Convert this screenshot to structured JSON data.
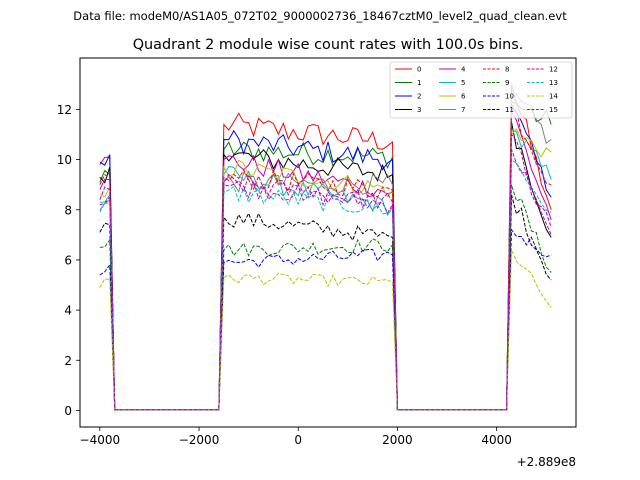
{
  "header": {
    "file_line": "Data file: modeM0/AS1A05_072T02_9000002736_18467cztM0_level2_quad_clean.evt"
  },
  "chart_data": {
    "type": "line",
    "title": "Quadrant 2 module wise count rates with 100.0s bins.",
    "xlabel": "",
    "ylabel": "",
    "x_offset_label": "+2.889e8",
    "xlim": [
      -4400,
      5600
    ],
    "ylim": [
      -0.66,
      14.05
    ],
    "xticks": [
      -4000,
      -2000,
      0,
      2000,
      4000
    ],
    "xtick_labels": [
      "−4000",
      "−2000",
      "0",
      "2000",
      "4000"
    ],
    "yticks": [
      0,
      2,
      4,
      6,
      8,
      10,
      12
    ],
    "ytick_labels": [
      "0",
      "2",
      "4",
      "6",
      "8",
      "10",
      "12"
    ],
    "legend_position": "top-right",
    "segments": [
      {
        "start": -4000,
        "end": -3800
      },
      {
        "start": -1500,
        "end": 1900
      },
      {
        "start": 4300,
        "end": 5100
      }
    ],
    "gap_level": 0.03,
    "series": [
      {
        "name": "0",
        "color": "#ff0000",
        "dash": "solid",
        "values": [
          [
            9.8,
            10.1
          ],
          [
            11.4,
            10.7
          ],
          [
            13.0,
            8.0
          ]
        ]
      },
      {
        "name": "1",
        "color": "#008000",
        "dash": "solid",
        "values": [
          [
            9.1,
            9.4
          ],
          [
            10.4,
            10.1
          ],
          [
            12.3,
            11.4
          ]
        ]
      },
      {
        "name": "2",
        "color": "#0000ff",
        "dash": "solid",
        "values": [
          [
            9.9,
            10.2
          ],
          [
            10.8,
            10.0
          ],
          [
            12.1,
            8.5
          ]
        ]
      },
      {
        "name": "3",
        "color": "#000000",
        "dash": "solid",
        "values": [
          [
            9.3,
            9.7
          ],
          [
            10.2,
            9.4
          ],
          [
            11.5,
            6.9
          ]
        ]
      },
      {
        "name": "4",
        "color": "#bf00bf",
        "dash": "solid",
        "values": [
          [
            8.8,
            9.2
          ],
          [
            10.0,
            8.7
          ],
          [
            11.9,
            7.6
          ]
        ]
      },
      {
        "name": "5",
        "color": "#00bfbf",
        "dash": "solid",
        "values": [
          [
            8.3,
            8.6
          ],
          [
            9.4,
            8.1
          ],
          [
            11.2,
            9.2
          ]
        ]
      },
      {
        "name": "6",
        "color": "#bfbf00",
        "dash": "solid",
        "values": [
          [
            8.6,
            8.9
          ],
          [
            9.7,
            8.8
          ],
          [
            11.0,
            10.3
          ]
        ]
      },
      {
        "name": "7",
        "color": "#808080",
        "dash": "solid",
        "values": [
          [
            8.0,
            8.4
          ],
          [
            9.1,
            9.0
          ],
          [
            12.5,
            10.8
          ]
        ]
      },
      {
        "name": "8",
        "color": "#ff0000",
        "dash": "dashed",
        "values": [
          [
            9.0,
            9.3
          ],
          [
            9.3,
            8.8
          ],
          [
            12.2,
            9.0
          ]
        ]
      },
      {
        "name": "9",
        "color": "#008000",
        "dash": "dashed",
        "values": [
          [
            6.5,
            6.8
          ],
          [
            6.4,
            6.6
          ],
          [
            9.0,
            5.5
          ]
        ]
      },
      {
        "name": "10",
        "color": "#0000ff",
        "dash": "dashed",
        "values": [
          [
            5.4,
            5.8
          ],
          [
            5.9,
            6.2
          ],
          [
            7.2,
            6.2
          ]
        ]
      },
      {
        "name": "11",
        "color": "#000000",
        "dash": "dashed",
        "values": [
          [
            7.1,
            7.4
          ],
          [
            7.7,
            6.9
          ],
          [
            8.6,
            5.2
          ]
        ]
      },
      {
        "name": "12",
        "color": "#bf00bf",
        "dash": "dashed",
        "values": [
          [
            8.2,
            8.5
          ],
          [
            9.0,
            8.2
          ],
          [
            10.4,
            7.3
          ]
        ]
      },
      {
        "name": "13",
        "color": "#00bfbf",
        "dash": "dashed",
        "values": [
          [
            7.9,
            8.2
          ],
          [
            8.7,
            8.0
          ],
          [
            10.0,
            7.9
          ]
        ]
      },
      {
        "name": "14",
        "color": "#bfbf00",
        "dash": "dashed",
        "values": [
          [
            4.9,
            5.2
          ],
          [
            5.3,
            5.1
          ],
          [
            6.4,
            4.1
          ]
        ]
      },
      {
        "name": "15",
        "color": "#bf00bf",
        "dash": "dashed",
        "values": [
          [
            8.4,
            8.8
          ],
          [
            9.1,
            8.3
          ],
          [
            11.0,
            7.0
          ]
        ]
      }
    ]
  }
}
